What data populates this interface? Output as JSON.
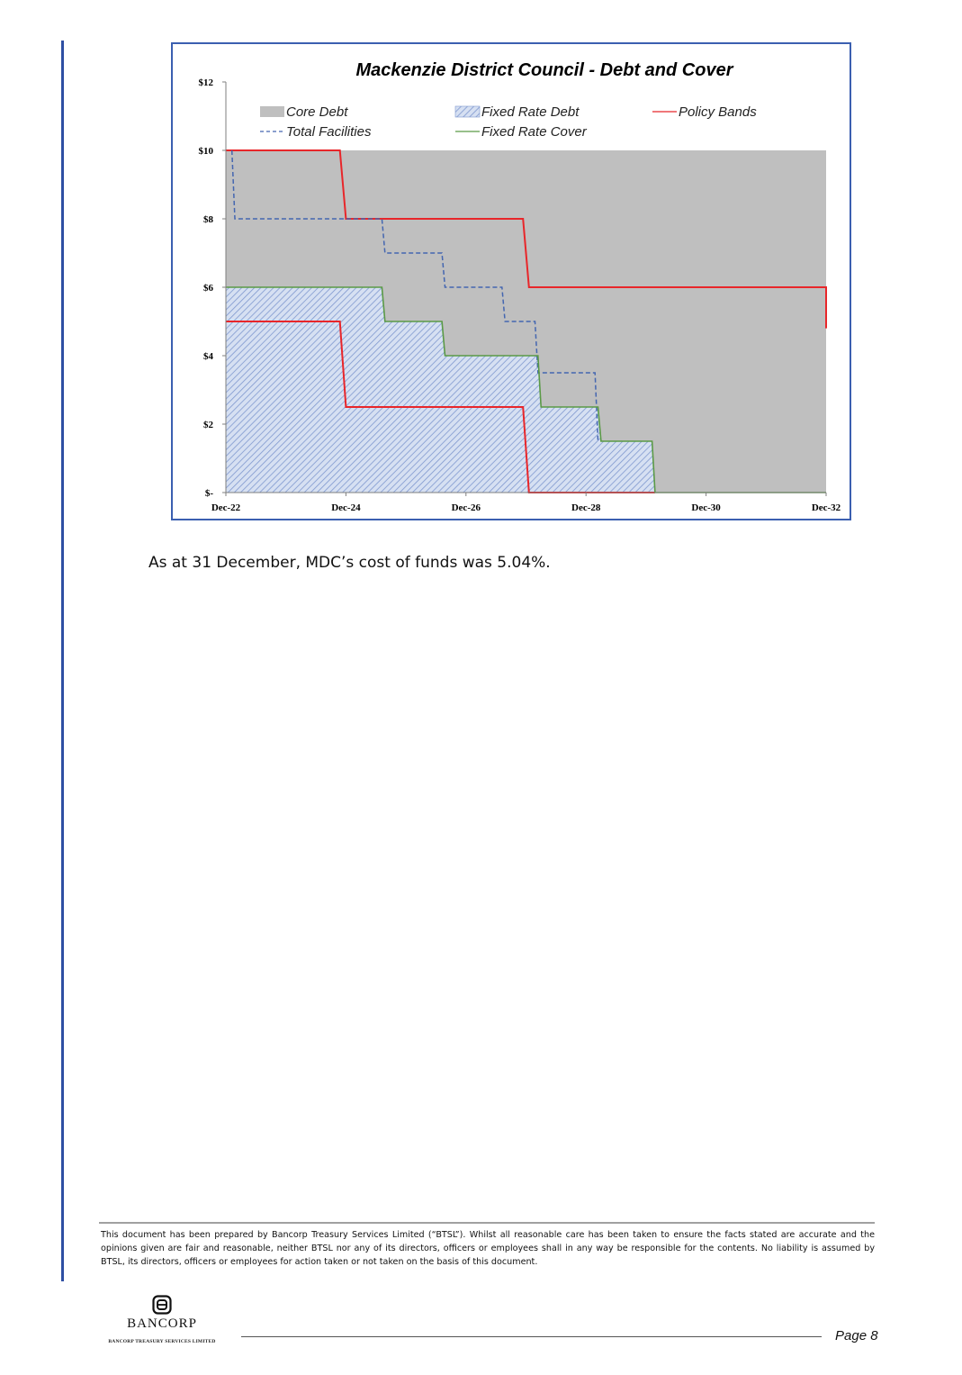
{
  "chart_data": {
    "type": "area",
    "title": "Mackenzie District Council - Debt and Cover",
    "x_axis": {
      "ticks": [
        "Dec-22",
        "Dec-24",
        "Dec-26",
        "Dec-28",
        "Dec-30",
        "Dec-32"
      ],
      "tick_years": [
        2022.95,
        2024.95,
        2026.95,
        2028.95,
        2030.95,
        2032.95
      ],
      "range": [
        2022.95,
        2032.95
      ]
    },
    "y_axis": {
      "ticks": [
        "$-",
        "$2",
        "$4",
        "$6",
        "$8",
        "$10",
        "$12"
      ],
      "tick_values": [
        0,
        2,
        4,
        6,
        8,
        10,
        12
      ],
      "range": [
        0,
        12
      ]
    },
    "legend_position": "top",
    "grid": false,
    "series": [
      {
        "name": "Core Debt",
        "kind": "area",
        "color": "#bfbfbf",
        "points": [
          [
            2022.95,
            10
          ],
          [
            2032.95,
            10
          ]
        ]
      },
      {
        "name": "Fixed Rate Debt",
        "kind": "hatched-area",
        "color": "#9db3dd",
        "points": [
          [
            2022.95,
            6
          ],
          [
            2025.55,
            6
          ],
          [
            2025.6,
            5
          ],
          [
            2026.55,
            5
          ],
          [
            2026.6,
            4
          ],
          [
            2028.15,
            4
          ],
          [
            2028.2,
            2.5
          ],
          [
            2029.15,
            2.5
          ],
          [
            2029.2,
            1.5
          ],
          [
            2030.05,
            1.5
          ],
          [
            2030.1,
            0
          ]
        ]
      },
      {
        "name": "Policy Bands",
        "kind": "line",
        "color": "#e8262a",
        "segments": [
          [
            [
              2022.95,
              10
            ],
            [
              2024.85,
              10
            ],
            [
              2024.95,
              8
            ],
            [
              2027.9,
              8
            ],
            [
              2028.0,
              6
            ],
            [
              2032.95,
              6
            ],
            [
              2032.95,
              4.8
            ]
          ],
          [
            [
              2022.95,
              5
            ],
            [
              2024.85,
              5
            ],
            [
              2024.95,
              2.5
            ],
            [
              2027.9,
              2.5
            ],
            [
              2028.0,
              0
            ],
            [
              2030.1,
              0
            ]
          ]
        ]
      },
      {
        "name": "Total Facilities",
        "kind": "dashed-line",
        "color": "#4466b0",
        "points": [
          [
            2023.05,
            10
          ],
          [
            2023.1,
            8
          ],
          [
            2025.55,
            8
          ],
          [
            2025.6,
            7
          ],
          [
            2026.55,
            7
          ],
          [
            2026.6,
            6
          ],
          [
            2027.55,
            6
          ],
          [
            2027.6,
            5
          ],
          [
            2028.1,
            5
          ],
          [
            2028.15,
            3.5
          ],
          [
            2029.1,
            3.5
          ],
          [
            2029.15,
            1.5
          ]
        ]
      },
      {
        "name": "Fixed Rate Cover",
        "kind": "line",
        "color": "#5a9a46",
        "points": [
          [
            2022.95,
            6
          ],
          [
            2025.55,
            6
          ],
          [
            2025.6,
            5
          ],
          [
            2026.55,
            5
          ],
          [
            2026.6,
            4
          ],
          [
            2028.15,
            4
          ],
          [
            2028.2,
            2.5
          ],
          [
            2029.15,
            2.5
          ],
          [
            2029.2,
            1.5
          ],
          [
            2030.05,
            1.5
          ],
          [
            2030.1,
            0
          ],
          [
            2032.95,
            0
          ]
        ]
      }
    ]
  },
  "body_text": "As at 31 December, MDC’s cost of funds was 5.04%.",
  "footer": {
    "disclaimer": "This document has been prepared by Bancorp Treasury Services Limited (“BTSL”). Whilst all reasonable care has been taken to ensure the facts stated are accurate and the opinions given are fair and reasonable, neither BTSL nor any of its directors, officers or employees shall in any way be responsible for the contents. No liability is assumed by BTSL, its directors, officers or employees for action taken or not taken on the basis of this document.",
    "logo_name": "BANCORP",
    "logo_sub": "BANCORP TREASURY SERVICES LIMITED",
    "page_label": "Page 8"
  },
  "colors": {
    "accent_rule": "#2e4fa3",
    "chart_border": "#3b5fb0"
  }
}
